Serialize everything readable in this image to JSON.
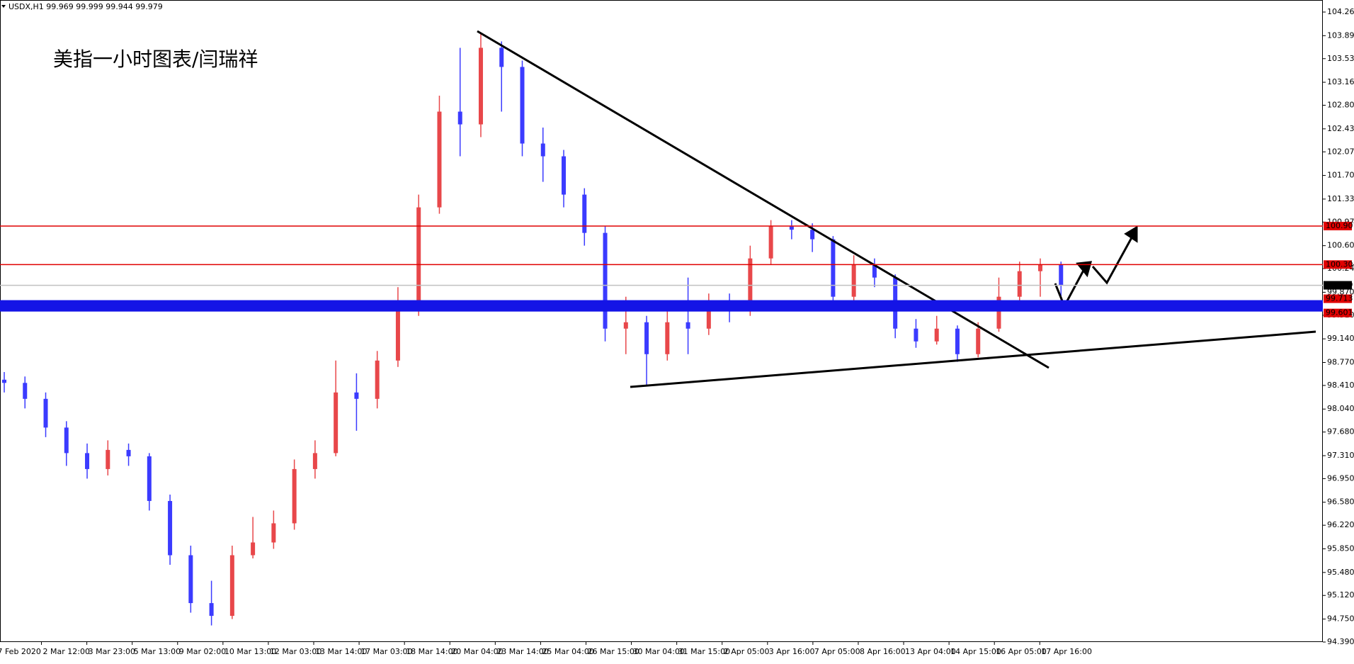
{
  "chart_data": {
    "type": "candlestick",
    "header": "USDX,H1  99.969 99.999 99.944 99.979",
    "annotation": "美指一小时图表/闫瑞祥",
    "up_color": "#e8474a",
    "down_color": "#3b3bff",
    "open": [
      98.5,
      98.45,
      98.2,
      97.75,
      97.35,
      97.1,
      97.4,
      97.3,
      96.6,
      95.75,
      95.0,
      94.8,
      95.75,
      95.95,
      96.25,
      97.1,
      97.35,
      98.3,
      98.2,
      98.8,
      99.7,
      101.2,
      102.7,
      102.5,
      103.7,
      103.4,
      102.2,
      102.0,
      101.4,
      100.8,
      99.3,
      99.4,
      98.9,
      99.4,
      99.3,
      99.7,
      99.6,
      100.4,
      100.9,
      100.85,
      100.7,
      99.8,
      100.3,
      100.1,
      99.3,
      99.1,
      99.3,
      98.9,
      99.3,
      99.8,
      100.2,
      100.3
    ],
    "high": [
      98.62,
      98.55,
      98.3,
      97.85,
      97.5,
      97.55,
      97.5,
      97.35,
      96.7,
      95.9,
      95.35,
      95.9,
      96.35,
      96.45,
      97.25,
      97.55,
      98.8,
      98.6,
      98.95,
      99.95,
      101.4,
      102.95,
      103.7,
      103.92,
      103.8,
      103.5,
      102.45,
      102.1,
      101.5,
      100.9,
      99.8,
      99.5,
      99.6,
      100.1,
      99.85,
      99.85,
      100.6,
      101.0,
      101.0,
      100.95,
      100.75,
      100.45,
      100.4,
      100.15,
      99.45,
      99.5,
      99.35,
      99.4,
      100.1,
      100.35,
      100.4,
      100.35
    ],
    "low": [
      98.3,
      98.05,
      97.6,
      97.15,
      96.95,
      97.0,
      97.15,
      96.45,
      95.6,
      94.85,
      94.65,
      94.75,
      95.7,
      95.85,
      96.15,
      96.95,
      97.3,
      97.7,
      98.05,
      98.7,
      99.5,
      101.1,
      102.0,
      102.3,
      102.7,
      102.0,
      101.6,
      101.2,
      100.6,
      99.1,
      98.9,
      98.41,
      98.8,
      98.9,
      99.2,
      99.4,
      99.5,
      100.3,
      100.7,
      100.5,
      99.65,
      99.7,
      99.95,
      99.15,
      99.0,
      99.05,
      98.78,
      98.85,
      99.25,
      99.65,
      99.8,
      99.6
    ],
    "close": [
      98.45,
      98.2,
      97.75,
      97.35,
      97.1,
      97.4,
      97.3,
      96.6,
      95.75,
      95.0,
      94.8,
      95.75,
      95.95,
      96.25,
      97.1,
      97.35,
      98.3,
      98.2,
      98.8,
      99.7,
      101.2,
      102.7,
      102.5,
      103.7,
      103.4,
      102.2,
      102.0,
      101.4,
      100.8,
      99.3,
      99.4,
      98.9,
      99.4,
      99.3,
      99.7,
      99.6,
      100.4,
      100.9,
      100.85,
      100.7,
      99.8,
      100.3,
      100.1,
      99.3,
      99.1,
      99.3,
      98.9,
      99.3,
      99.8,
      100.2,
      100.3,
      99.98
    ],
    "xtick_labels": [
      "7 Feb 2020",
      "2 Mar 12:00",
      "3 Mar 23:00",
      "5 Mar 13:00",
      "9 Mar 02:00",
      "10 Mar 13:00",
      "12 Mar 03:00",
      "13 Mar 14:00",
      "17 Mar 03:00",
      "18 Mar 14:00",
      "20 Mar 04:00",
      "23 Mar 14:00",
      "25 Mar 04:00",
      "26 Mar 15:00",
      "30 Mar 04:00",
      "31 Mar 15:00",
      "2 Apr 05:00",
      "3 Apr 16:00",
      "7 Apr 05:00",
      "8 Apr 16:00",
      "13 Apr 04:00",
      "14 Apr 15:00",
      "16 Apr 05:00",
      "17 Apr 16:00"
    ],
    "ylim": [
      94.39,
      104.26
    ],
    "yticks": [
      {
        "value": 104.26,
        "label": "104.260"
      },
      {
        "value": 103.89,
        "label": "103.890"
      },
      {
        "value": 103.53,
        "label": "103.530"
      },
      {
        "value": 103.16,
        "label": "103.160"
      },
      {
        "value": 102.8,
        "label": "102.800"
      },
      {
        "value": 102.43,
        "label": "102.430"
      },
      {
        "value": 102.07,
        "label": "102.070"
      },
      {
        "value": 101.7,
        "label": "101.700"
      },
      {
        "value": 101.33,
        "label": "101.330"
      },
      {
        "value": 100.97,
        "label": "100.970"
      },
      {
        "value": 100.6,
        "label": "100.600"
      },
      {
        "value": 100.24,
        "label": "100.240"
      },
      {
        "value": 99.87,
        "label": "99.870"
      },
      {
        "value": 99.51,
        "label": "99.510"
      },
      {
        "value": 99.14,
        "label": "99.140"
      },
      {
        "value": 98.77,
        "label": "98.770"
      },
      {
        "value": 98.41,
        "label": "98.410"
      },
      {
        "value": 98.04,
        "label": "98.040"
      },
      {
        "value": 97.68,
        "label": "97.680"
      },
      {
        "value": 97.31,
        "label": "97.310"
      },
      {
        "value": 96.95,
        "label": "96.950"
      },
      {
        "value": 96.58,
        "label": "96.580"
      },
      {
        "value": 96.22,
        "label": "96.220"
      },
      {
        "value": 95.85,
        "label": "95.850"
      },
      {
        "value": 95.48,
        "label": "95.480"
      },
      {
        "value": 95.12,
        "label": "95.120"
      },
      {
        "value": 94.75,
        "label": "94.750"
      },
      {
        "value": 94.39,
        "label": "94.390"
      }
    ],
    "levels": [
      {
        "value": 100.907,
        "label": "100.907",
        "color": "#e00000"
      },
      {
        "value": 100.304,
        "label": "100.304",
        "color": "#e00000"
      },
      {
        "value": 99.979,
        "label": "99.979",
        "color": "#c0c0c0"
      }
    ],
    "band": {
      "top": {
        "value": 99.713,
        "label": "99.713"
      },
      "bottom": {
        "value": 99.601,
        "label": "99.601"
      },
      "color": "#1414e6",
      "label_color": "#e00000"
    }
  }
}
